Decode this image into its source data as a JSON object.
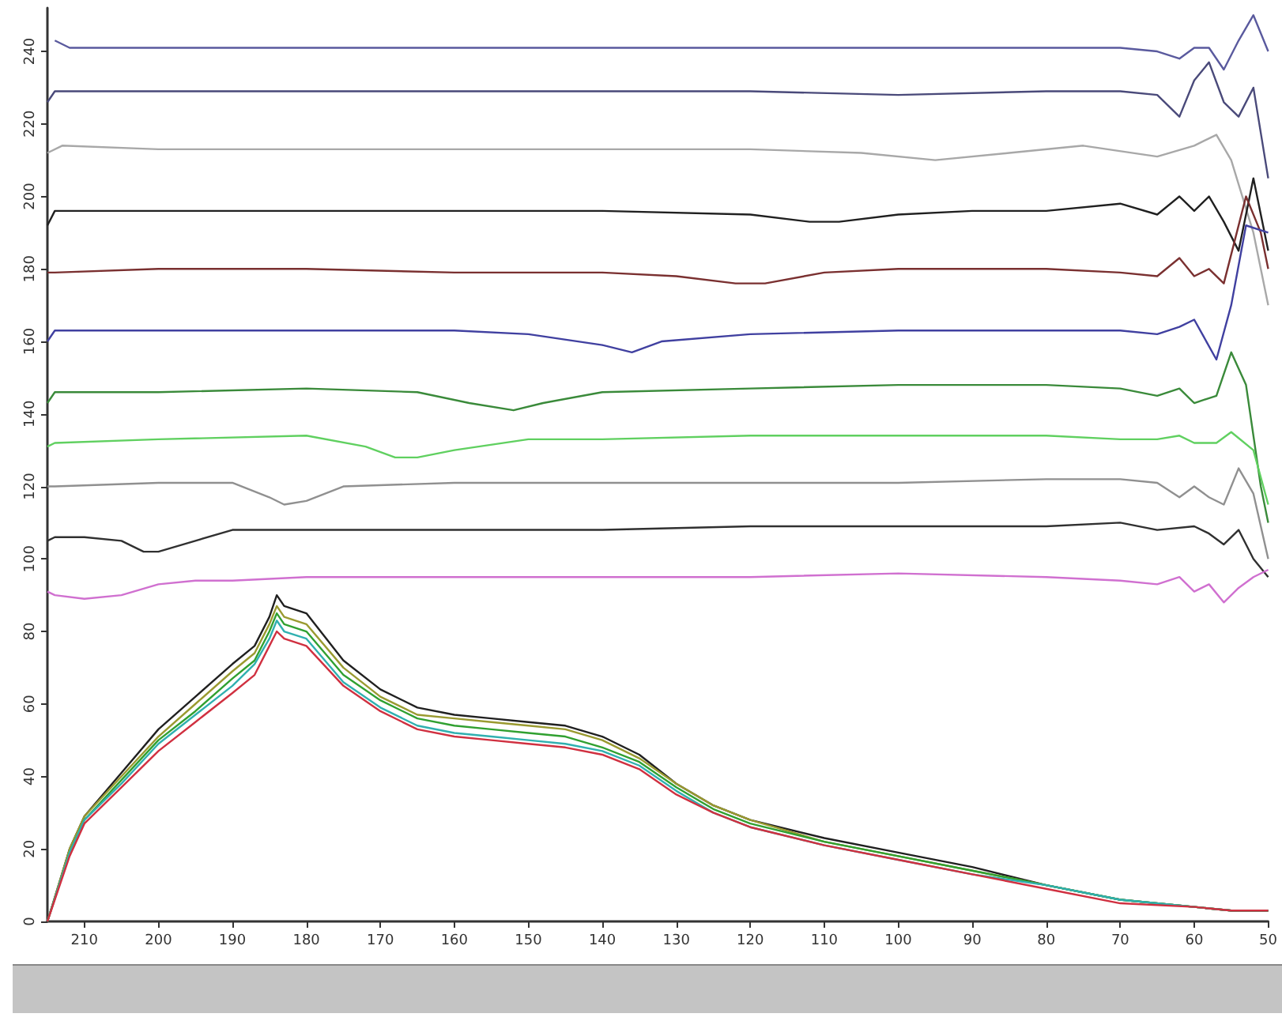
{
  "chart_data": {
    "type": "line",
    "xlim": [
      215,
      50
    ],
    "xticks": [
      210,
      200,
      190,
      180,
      170,
      160,
      150,
      140,
      130,
      120,
      110,
      100,
      90,
      80,
      70,
      60,
      50
    ],
    "ylim": [
      0,
      252
    ],
    "yticks": [
      0,
      20,
      40,
      60,
      80,
      100,
      120,
      140,
      160,
      180,
      200,
      220,
      240
    ],
    "grid": false,
    "marker": "none",
    "line_style": "solid",
    "series": [
      {
        "color": "#5a5a9e",
        "x": [
          214,
          212,
          200,
          180,
          160,
          140,
          120,
          100,
          80,
          70,
          65,
          62,
          60,
          58,
          56,
          54,
          52,
          50
        ],
        "values": [
          243,
          241,
          241,
          241,
          241,
          241,
          241,
          241,
          241,
          241,
          240,
          238,
          241,
          241,
          235,
          243,
          250,
          240
        ]
      },
      {
        "color": "#4a4a7a",
        "x": [
          215,
          214,
          200,
          180,
          160,
          140,
          120,
          100,
          80,
          70,
          65,
          62,
          60,
          58,
          56,
          54,
          52,
          50
        ],
        "values": [
          226,
          229,
          229,
          229,
          229,
          229,
          229,
          228,
          229,
          229,
          228,
          222,
          232,
          237,
          226,
          222,
          230,
          205
        ]
      },
      {
        "color": "#a8a8a8",
        "x": [
          215,
          213,
          200,
          180,
          160,
          140,
          120,
          105,
          95,
          85,
          75,
          65,
          60,
          57,
          55,
          52,
          50
        ],
        "values": [
          212,
          214,
          213,
          213,
          213,
          213,
          213,
          212,
          210,
          212,
          214,
          211,
          214,
          217,
          210,
          190,
          170
        ]
      },
      {
        "color": "#202020",
        "x": [
          215,
          214,
          200,
          180,
          160,
          140,
          120,
          112,
          108,
          100,
          90,
          80,
          70,
          65,
          62,
          60,
          58,
          56,
          54,
          52,
          50
        ],
        "values": [
          192,
          196,
          196,
          196,
          196,
          196,
          195,
          193,
          193,
          195,
          196,
          196,
          198,
          195,
          200,
          196,
          200,
          193,
          185,
          205,
          185
        ]
      },
      {
        "color": "#7a3030",
        "x": [
          215,
          214,
          200,
          180,
          160,
          140,
          130,
          122,
          118,
          110,
          100,
          90,
          80,
          70,
          65,
          62,
          60,
          58,
          56,
          53,
          51,
          50
        ],
        "values": [
          179,
          179,
          180,
          180,
          179,
          179,
          178,
          176,
          176,
          179,
          180,
          180,
          180,
          179,
          178,
          183,
          178,
          180,
          176,
          200,
          190,
          180
        ]
      },
      {
        "color": "#4040a0",
        "x": [
          215,
          214,
          200,
          180,
          160,
          150,
          140,
          136,
          132,
          120,
          100,
          80,
          70,
          65,
          62,
          60,
          57,
          55,
          53,
          50
        ],
        "values": [
          160,
          163,
          163,
          163,
          163,
          162,
          159,
          157,
          160,
          162,
          163,
          163,
          163,
          162,
          164,
          166,
          155,
          170,
          192,
          190
        ]
      },
      {
        "color": "#3a8a3a",
        "x": [
          215,
          214,
          200,
          180,
          165,
          158,
          152,
          148,
          140,
          120,
          100,
          80,
          70,
          65,
          62,
          60,
          57,
          55,
          53,
          51,
          50
        ],
        "values": [
          143,
          146,
          146,
          147,
          146,
          143,
          141,
          143,
          146,
          147,
          148,
          148,
          147,
          145,
          147,
          143,
          145,
          157,
          148,
          120,
          110
        ]
      },
      {
        "color": "#60d060",
        "x": [
          215,
          214,
          200,
          180,
          172,
          168,
          165,
          160,
          150,
          140,
          120,
          100,
          80,
          70,
          65,
          62,
          60,
          57,
          55,
          52,
          50
        ],
        "values": [
          131,
          132,
          133,
          134,
          131,
          128,
          128,
          130,
          133,
          133,
          134,
          134,
          134,
          133,
          133,
          134,
          132,
          132,
          135,
          130,
          115
        ]
      },
      {
        "color": "#909090",
        "x": [
          215,
          214,
          200,
          190,
          185,
          183,
          180,
          175,
          160,
          140,
          120,
          100,
          80,
          70,
          65,
          62,
          60,
          58,
          56,
          54,
          52,
          50
        ],
        "values": [
          120,
          120,
          121,
          121,
          117,
          115,
          116,
          120,
          121,
          121,
          121,
          121,
          122,
          122,
          121,
          117,
          120,
          117,
          115,
          125,
          118,
          100
        ]
      },
      {
        "color": "#303030",
        "x": [
          215,
          214,
          210,
          205,
          202,
          200,
          195,
          190,
          180,
          160,
          140,
          120,
          100,
          80,
          70,
          65,
          60,
          58,
          56,
          54,
          52,
          50
        ],
        "values": [
          105,
          106,
          106,
          105,
          102,
          102,
          105,
          108,
          108,
          108,
          108,
          109,
          109,
          109,
          110,
          108,
          109,
          107,
          104,
          108,
          100,
          95
        ]
      },
      {
        "color": "#d070d0",
        "x": [
          215,
          214,
          210,
          205,
          200,
          195,
          190,
          180,
          160,
          140,
          120,
          100,
          80,
          70,
          65,
          62,
          60,
          58,
          56,
          54,
          52,
          50
        ],
        "values": [
          91,
          90,
          89,
          90,
          93,
          94,
          94,
          95,
          95,
          95,
          95,
          96,
          95,
          94,
          93,
          95,
          91,
          93,
          88,
          92,
          95,
          97
        ]
      },
      {
        "color": "#202020",
        "x": [
          215,
          212,
          210,
          205,
          200,
          195,
          190,
          187,
          185,
          184,
          183,
          180,
          175,
          170,
          165,
          160,
          155,
          150,
          145,
          140,
          135,
          130,
          125,
          120,
          110,
          100,
          90,
          80,
          70,
          60,
          55,
          50
        ],
        "values": [
          0,
          20,
          29,
          41,
          53,
          62,
          71,
          76,
          84,
          90,
          87,
          85,
          72,
          64,
          59,
          57,
          56,
          55,
          54,
          51,
          46,
          38,
          32,
          28,
          23,
          19,
          15,
          10,
          6,
          4,
          3,
          3
        ]
      },
      {
        "color": "#9a9a30",
        "x": [
          215,
          212,
          210,
          205,
          200,
          195,
          190,
          187,
          185,
          184,
          183,
          180,
          175,
          170,
          165,
          160,
          155,
          150,
          145,
          140,
          135,
          130,
          125,
          120,
          110,
          100,
          90,
          80,
          70,
          60,
          55,
          50
        ],
        "values": [
          0,
          20,
          29,
          40,
          51,
          60,
          69,
          74,
          82,
          87,
          84,
          82,
          70,
          62,
          57,
          56,
          55,
          54,
          53,
          50,
          45,
          38,
          32,
          28,
          22,
          18,
          14,
          10,
          6,
          4,
          3,
          3
        ]
      },
      {
        "color": "#30a030",
        "x": [
          215,
          212,
          210,
          205,
          200,
          195,
          190,
          187,
          185,
          184,
          183,
          180,
          175,
          170,
          165,
          160,
          155,
          150,
          145,
          140,
          135,
          130,
          125,
          120,
          110,
          100,
          90,
          80,
          70,
          60,
          55,
          50
        ],
        "values": [
          0,
          19,
          28,
          39,
          50,
          58,
          67,
          72,
          80,
          85,
          82,
          80,
          68,
          61,
          56,
          54,
          53,
          52,
          51,
          48,
          44,
          37,
          31,
          27,
          22,
          18,
          14,
          10,
          6,
          4,
          3,
          3
        ]
      },
      {
        "color": "#30b0b0",
        "x": [
          215,
          212,
          210,
          205,
          200,
          195,
          190,
          187,
          185,
          184,
          183,
          180,
          175,
          170,
          165,
          160,
          155,
          150,
          145,
          140,
          135,
          130,
          125,
          120,
          110,
          100,
          90,
          80,
          70,
          60,
          55,
          50
        ],
        "values": [
          0,
          19,
          28,
          38,
          49,
          57,
          65,
          71,
          78,
          83,
          80,
          78,
          66,
          59,
          54,
          52,
          51,
          50,
          49,
          47,
          43,
          36,
          30,
          26,
          21,
          17,
          13,
          10,
          6,
          4,
          3,
          3
        ]
      },
      {
        "color": "#d03040",
        "x": [
          215,
          212,
          210,
          205,
          200,
          195,
          190,
          187,
          185,
          184,
          183,
          180,
          175,
          170,
          165,
          160,
          155,
          150,
          145,
          140,
          135,
          130,
          125,
          120,
          110,
          100,
          90,
          80,
          70,
          60,
          55,
          50
        ],
        "values": [
          0,
          18,
          27,
          37,
          47,
          55,
          63,
          68,
          76,
          80,
          78,
          76,
          65,
          58,
          53,
          51,
          50,
          49,
          48,
          46,
          42,
          35,
          30,
          26,
          21,
          17,
          13,
          9,
          5,
          4,
          3,
          3
        ]
      }
    ]
  }
}
